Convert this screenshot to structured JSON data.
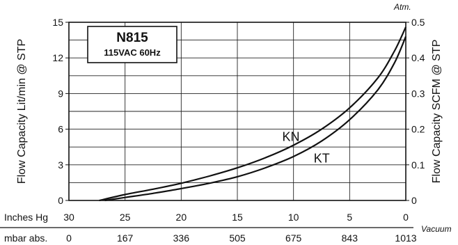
{
  "chart_data": {
    "type": "line",
    "title": "N815",
    "subtitle": "115VAC  60Hz",
    "ylabel_left": "Flow Capacity Lit/min @ STP",
    "ylabel_right": "Flow Capacity SCFM @ STP",
    "right_unit": "Atm.",
    "ylim_left": [
      0,
      15
    ],
    "ylim_right": [
      0,
      0.5
    ],
    "y_ticks_left": [
      "0",
      "3",
      "6",
      "9",
      "12",
      "15"
    ],
    "y_ticks_right": [
      "0",
      "0.1",
      "0.2",
      "0.3",
      "0.4",
      "0.5"
    ],
    "x_axis_primary": {
      "label": "Inches Hg",
      "ticks": [
        "30",
        "25",
        "20",
        "15",
        "10",
        "5",
        "0"
      ],
      "values": [
        30,
        25,
        20,
        15,
        10,
        5,
        0
      ]
    },
    "x_axis_secondary": {
      "label": "mbar abs.",
      "ticks": [
        "0",
        "167",
        "336",
        "505",
        "675",
        "843",
        "1013"
      ]
    },
    "x_suffix": "Vacuum",
    "xlim_inHg": [
      30,
      0
    ],
    "grid": true,
    "series": [
      {
        "name": "KN",
        "x": [
          27.3,
          25,
          22.5,
          20,
          17.5,
          15,
          12.5,
          10,
          7.5,
          5,
          2.5,
          1,
          0
        ],
        "y": [
          0,
          0.5,
          0.95,
          1.45,
          2.05,
          2.75,
          3.6,
          4.65,
          6.0,
          7.8,
          10.3,
          12.6,
          14.6
        ]
      },
      {
        "name": "KT",
        "x": [
          26.8,
          25,
          22.5,
          20,
          17.5,
          15,
          12.5,
          10,
          7.5,
          5,
          2.5,
          1,
          0
        ],
        "y": [
          0,
          0.25,
          0.6,
          1.0,
          1.45,
          2.0,
          2.75,
          3.7,
          5.0,
          6.8,
          9.3,
          11.6,
          13.8
        ]
      }
    ],
    "series_label_positions": [
      {
        "name": "KN",
        "x_inHg": 11.0,
        "y": 5.0
      },
      {
        "name": "KT",
        "x_inHg": 8.2,
        "y": 3.2
      }
    ]
  }
}
